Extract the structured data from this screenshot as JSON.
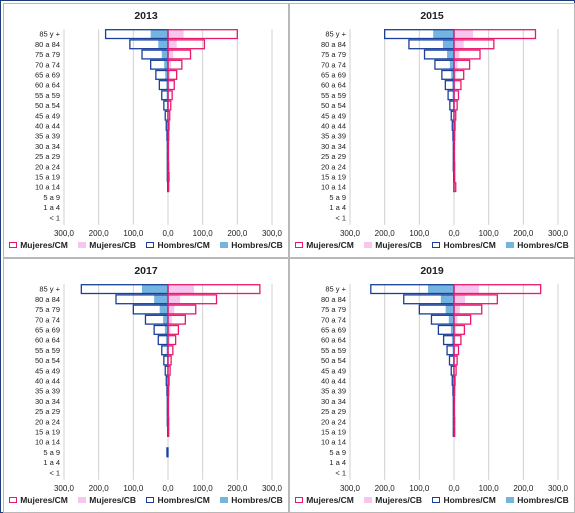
{
  "colors": {
    "mujeres_cm": "#e8196e",
    "mujeres_cb": "#f7c6ef",
    "hombres_cm": "#1a3f9c",
    "hombres_cb": "#74b4e0",
    "grid": "#d0d0d0",
    "axis_text": "#222222"
  },
  "legend_labels": [
    "Mujeres/CM",
    "Mujeres/CB",
    "Hombres/CM",
    "Hombres/CB"
  ],
  "chart_data": [
    {
      "type": "bar",
      "title": "2013",
      "orientation": "horizontal-population-pyramid",
      "categories": [
        "85 y +",
        "80 a 84",
        "75 a 79",
        "70 a 74",
        "65 a 69",
        "60 a 64",
        "55 a 59",
        "50 a 54",
        "45 a 49",
        "40 a 44",
        "35 a 39",
        "30 a 34",
        "25 a 29",
        "20 a 24",
        "15 a 19",
        "10 a 14",
        "5 a 9",
        "1 a 4",
        "< 1"
      ],
      "x_ticks": [
        "300,0",
        "200,0",
        "100,0",
        "0,0",
        "100,0",
        "200,0",
        "300,0"
      ],
      "xlim": [
        -300,
        300
      ],
      "grid": true,
      "legend_position": "bottom",
      "series": [
        {
          "name": "Mujeres/CM",
          "values": [
            200,
            105,
            65,
            40,
            25,
            18,
            12,
            8,
            5,
            3,
            2,
            1.5,
            1.5,
            2,
            3,
            2,
            0,
            0,
            0
          ]
        },
        {
          "name": "Mujeres/CB",
          "values": [
            45,
            25,
            15,
            9,
            6,
            4,
            3,
            2,
            1,
            0.5,
            0.3,
            0.3,
            0.3,
            0.5,
            1,
            0.5,
            0,
            0,
            0
          ]
        },
        {
          "name": "Hombres/CM",
          "values": [
            180,
            110,
            75,
            50,
            35,
            25,
            18,
            12,
            8,
            5,
            3,
            2,
            2,
            2,
            2,
            1,
            0,
            0,
            0
          ]
        },
        {
          "name": "Hombres/CB",
          "values": [
            50,
            28,
            18,
            11,
            8,
            5,
            4,
            3,
            2,
            1,
            0.5,
            0.5,
            0.5,
            0.5,
            0.5,
            0.3,
            0,
            0,
            0
          ]
        }
      ]
    },
    {
      "type": "bar",
      "title": "2015",
      "orientation": "horizontal-population-pyramid",
      "categories": [
        "85 y +",
        "80 a 84",
        "75 a 79",
        "70 a 74",
        "65 a 69",
        "60 a 64",
        "55 a 59",
        "50 a 54",
        "45 a 49",
        "40 a 44",
        "35 a 39",
        "30 a 34",
        "25 a 29",
        "20 a 24",
        "15 a 19",
        "10 a 14",
        "5 a 9",
        "1 a 4",
        "< 1"
      ],
      "x_ticks": [
        "300,0",
        "200,0",
        "100,0",
        "0,0",
        "100,0",
        "200,0",
        "300,0"
      ],
      "xlim": [
        -300,
        300
      ],
      "grid": true,
      "legend_position": "bottom",
      "series": [
        {
          "name": "Mujeres/CM",
          "values": [
            235,
            115,
            75,
            45,
            28,
            20,
            13,
            9,
            5,
            3,
            2,
            1.5,
            1.5,
            2,
            2,
            5,
            0,
            0,
            0
          ]
        },
        {
          "name": "Mujeres/CB",
          "values": [
            55,
            28,
            16,
            10,
            6,
            4,
            3,
            2,
            1,
            0.5,
            0.3,
            0.3,
            0.3,
            0.5,
            0.5,
            2,
            0,
            0,
            0
          ]
        },
        {
          "name": "Hombres/CM",
          "values": [
            200,
            130,
            85,
            55,
            35,
            25,
            17,
            12,
            8,
            5,
            3,
            2,
            2,
            2,
            1,
            0.5,
            0,
            0,
            0
          ]
        },
        {
          "name": "Hombres/CB",
          "values": [
            60,
            32,
            20,
            12,
            8,
            5,
            4,
            3,
            2,
            1,
            0.5,
            0.5,
            0.5,
            0.5,
            0.3,
            0.2,
            0,
            0,
            0
          ]
        }
      ]
    },
    {
      "type": "bar",
      "title": "2017",
      "orientation": "horizontal-population-pyramid",
      "categories": [
        "85 y +",
        "80 a 84",
        "75 a 79",
        "70 a 74",
        "65 a 69",
        "60 a 64",
        "55 a 59",
        "50 a 54",
        "45 a 49",
        "40 a 44",
        "35 a 39",
        "30 a 34",
        "25 a 29",
        "20 a 24",
        "15 a 19",
        "10 a 14",
        "5 a 9",
        "1 a 4",
        "< 1"
      ],
      "x_ticks": [
        "300,0",
        "200,0",
        "100,0",
        "0,0",
        "100,0",
        "200,0",
        "300,0"
      ],
      "xlim": [
        -300,
        300
      ],
      "grid": true,
      "legend_position": "bottom",
      "series": [
        {
          "name": "Mujeres/CM",
          "values": [
            265,
            140,
            80,
            50,
            30,
            22,
            14,
            9,
            6,
            3,
            2,
            1.5,
            1.5,
            2,
            2,
            0,
            0,
            0,
            0
          ]
        },
        {
          "name": "Mujeres/CB",
          "values": [
            75,
            35,
            18,
            11,
            7,
            5,
            3,
            2,
            1,
            0.5,
            0.3,
            0.3,
            0.3,
            0.5,
            0.5,
            0,
            0,
            0,
            0
          ]
        },
        {
          "name": "Hombres/CM",
          "values": [
            250,
            150,
            100,
            65,
            40,
            28,
            18,
            12,
            8,
            5,
            3,
            2,
            2,
            2,
            1,
            0,
            3,
            0,
            0
          ]
        },
        {
          "name": "Hombres/CB",
          "values": [
            75,
            40,
            24,
            14,
            9,
            6,
            4,
            3,
            2,
            1,
            0.5,
            0.5,
            0.5,
            0.5,
            0.3,
            0,
            3,
            0,
            0
          ]
        }
      ]
    },
    {
      "type": "bar",
      "title": "2019",
      "orientation": "horizontal-population-pyramid",
      "categories": [
        "85 y +",
        "80 a 84",
        "75 a 79",
        "70 a 74",
        "65 a 69",
        "60 a 64",
        "55 a 59",
        "50 a 54",
        "45 a 49",
        "40 a 44",
        "35 a 39",
        "30 a 34",
        "25 a 29",
        "20 a 24",
        "15 a 19",
        "10 a 14",
        "5 a 9",
        "1 a 4",
        "< 1"
      ],
      "x_ticks": [
        "300,0",
        "200,0",
        "100,0",
        "0,0",
        "100,0",
        "200,0",
        "300,0"
      ],
      "xlim": [
        -300,
        300
      ],
      "grid": true,
      "legend_position": "bottom",
      "series": [
        {
          "name": "Mujeres/CM",
          "values": [
            250,
            125,
            80,
            48,
            30,
            20,
            13,
            9,
            6,
            3,
            2,
            1.5,
            1.5,
            2,
            2,
            0,
            0,
            0,
            0
          ]
        },
        {
          "name": "Mujeres/CB",
          "values": [
            72,
            32,
            17,
            10,
            6,
            4,
            3,
            2,
            1,
            0.5,
            0.3,
            0.3,
            0.3,
            0.5,
            0.5,
            0,
            0,
            0,
            0
          ]
        },
        {
          "name": "Hombres/CM",
          "values": [
            240,
            145,
            100,
            65,
            45,
            30,
            20,
            13,
            8,
            5,
            3,
            2,
            2,
            2,
            2,
            0,
            0,
            0,
            0
          ]
        },
        {
          "name": "Hombres/CB",
          "values": [
            75,
            38,
            24,
            15,
            9,
            6,
            4,
            3,
            2,
            1,
            0.5,
            0.5,
            0.5,
            0.5,
            0.5,
            0,
            0,
            0,
            0
          ]
        }
      ]
    }
  ]
}
